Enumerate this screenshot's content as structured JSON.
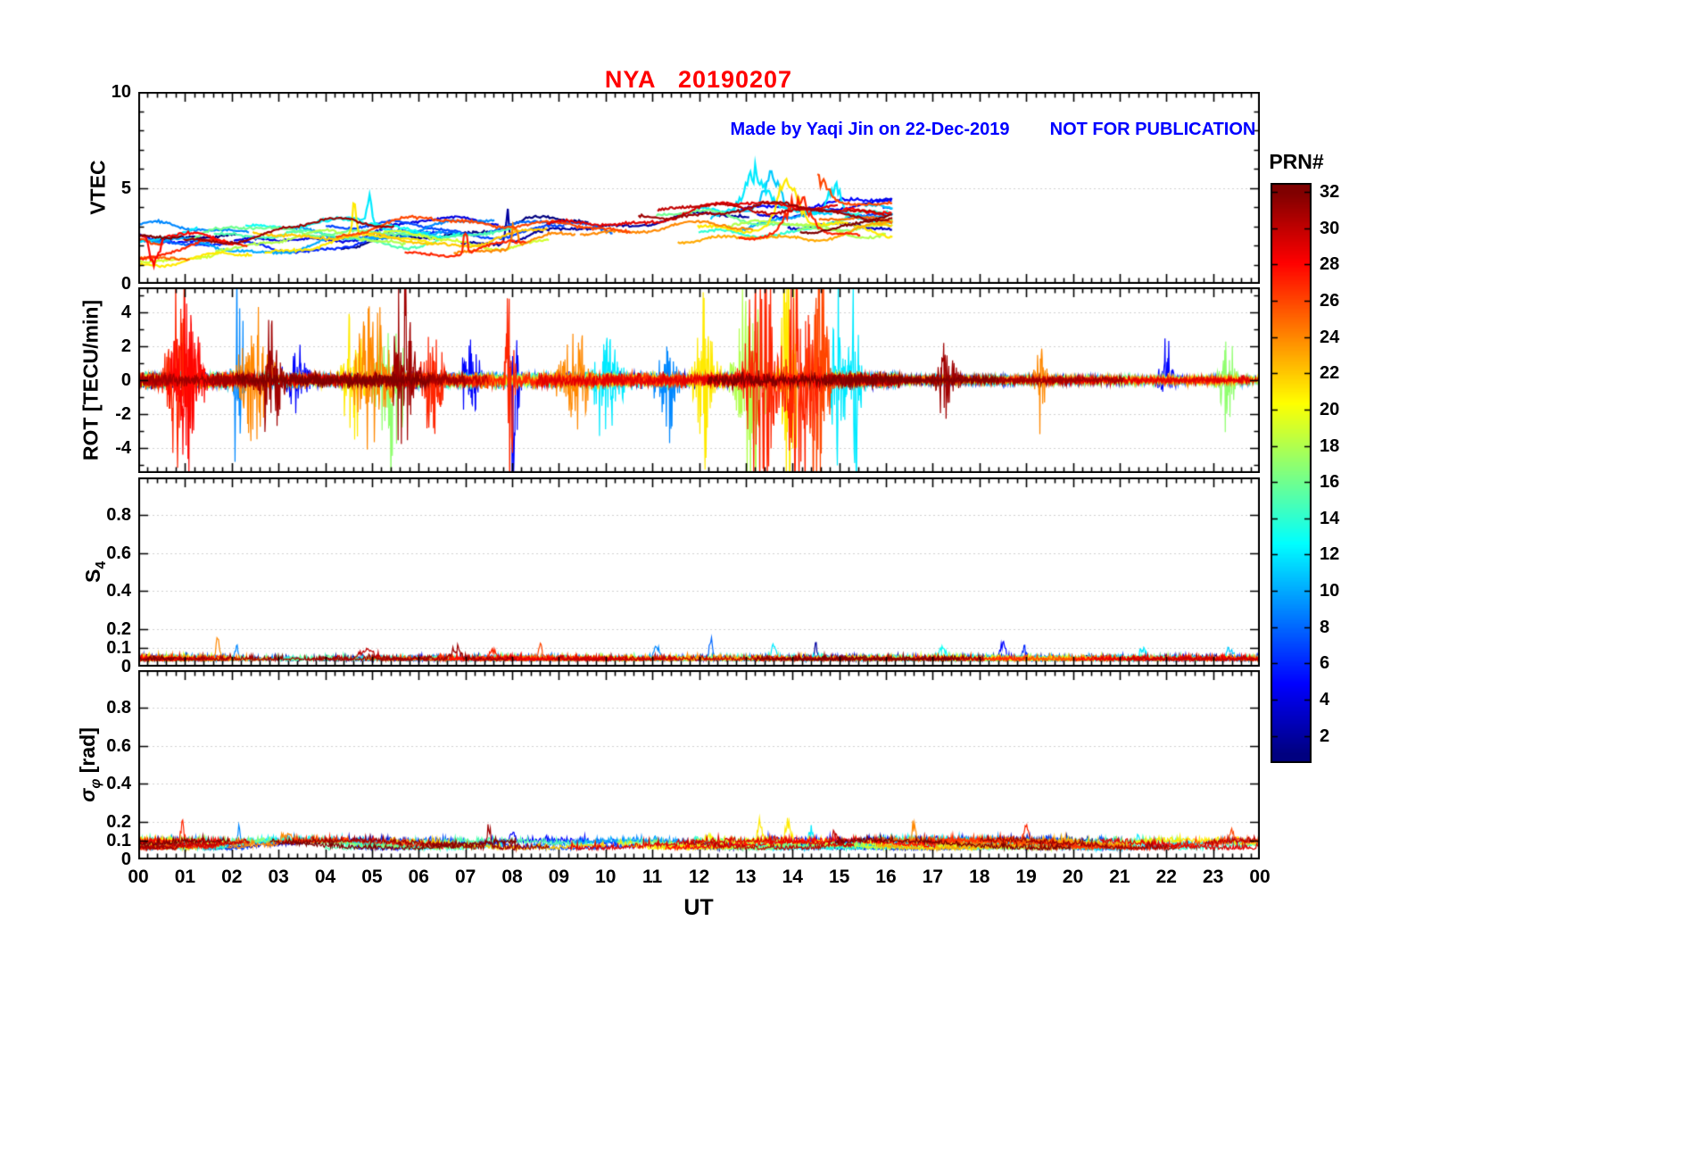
{
  "chart_data": {
    "type": "line",
    "title": "NYA   20190207",
    "subtitle_credit": "Made by Yaqi Jin on 22-Dec-2019",
    "subtitle_notice": "NOT FOR PUBLICATION",
    "xlabel": "UT",
    "x_range_hours": [
      0,
      24
    ],
    "x_ticks": [
      "00",
      "01",
      "02",
      "03",
      "04",
      "05",
      "06",
      "07",
      "08",
      "09",
      "10",
      "11",
      "12",
      "13",
      "14",
      "15",
      "16",
      "17",
      "18",
      "19",
      "20",
      "21",
      "22",
      "23",
      "00"
    ],
    "colorbar": {
      "label": "PRN#",
      "colormap": "jet",
      "value_range": [
        1,
        32
      ],
      "ticks": [
        2,
        4,
        6,
        8,
        10,
        12,
        14,
        16,
        18,
        20,
        22,
        24,
        26,
        28,
        30,
        32
      ]
    },
    "panels": [
      {
        "kind": "vtec",
        "ylabel": "VTEC",
        "ylim": [
          0,
          10
        ],
        "yticks": [
          0,
          5,
          10
        ],
        "yminor_step": 1,
        "data_time_range": [
          0,
          16.15
        ],
        "base0": 2.0,
        "base1": 3.4,
        "noise": 0.05,
        "line_width": 2.2,
        "events": [
          {
            "t": 0.35,
            "amp": -2.1,
            "prn": 28,
            "w": 0.12
          },
          {
            "t": 4.62,
            "amp": 1.9,
            "prn": 21,
            "w": 0.06
          },
          {
            "t": 4.95,
            "amp": 1.6,
            "prn": 12,
            "w": 0.07
          },
          {
            "t": 7.0,
            "amp": 1.7,
            "prn": 27,
            "w": 0.05
          },
          {
            "t": 7.9,
            "amp": 2.1,
            "prn": 2,
            "w": 0.05
          },
          {
            "t": 8.05,
            "amp": 1.5,
            "prn": 24,
            "w": 0.08
          },
          {
            "t": 13.2,
            "amp": 2.6,
            "prn": 12,
            "w": 0.35
          },
          {
            "t": 13.55,
            "amp": 2.2,
            "prn": 11,
            "w": 0.25
          },
          {
            "t": 13.9,
            "amp": 2.9,
            "prn": 21,
            "w": 0.28
          },
          {
            "t": 14.15,
            "amp": 2.3,
            "prn": 27,
            "w": 0.35
          },
          {
            "t": 14.6,
            "amp": 2.0,
            "prn": 26,
            "w": 0.25
          },
          {
            "t": 14.9,
            "amp": 1.8,
            "prn": 12,
            "w": 0.2
          }
        ]
      },
      {
        "kind": "rot",
        "ylabel": "ROT [TECU/min]",
        "ylim": [
          -5.5,
          5.5
        ],
        "yticks": [
          -4,
          -2,
          0,
          2,
          4
        ],
        "yminor_step": 1,
        "data_time_range": [
          0,
          24
        ],
        "noise_day": 0.13,
        "noise_late": 0.07,
        "line_width": 1.2,
        "events": [
          {
            "t": 0.9,
            "amp": 2.2,
            "prn": 27,
            "w": 0.25
          },
          {
            "t": 1.05,
            "amp": 1.5,
            "prn": 28,
            "w": 0.3
          },
          {
            "t": 2.15,
            "amp": 2.4,
            "prn": 9,
            "w": 0.1
          },
          {
            "t": 2.5,
            "amp": 1.2,
            "prn": 24,
            "w": 0.3
          },
          {
            "t": 2.85,
            "amp": 1.0,
            "prn": 31,
            "w": 0.2
          },
          {
            "t": 3.4,
            "amp": 0.7,
            "prn": 5,
            "w": 0.2
          },
          {
            "t": 4.6,
            "amp": 1.4,
            "prn": 21,
            "w": 0.2
          },
          {
            "t": 5.0,
            "amp": 1.8,
            "prn": 24,
            "w": 0.3
          },
          {
            "t": 5.35,
            "amp": 1.6,
            "prn": 17,
            "w": 0.3
          },
          {
            "t": 5.7,
            "amp": 2.0,
            "prn": 31,
            "w": 0.2
          },
          {
            "t": 6.3,
            "amp": 1.3,
            "prn": 27,
            "w": 0.2
          },
          {
            "t": 7.1,
            "amp": 1.2,
            "prn": 5,
            "w": 0.15
          },
          {
            "t": 7.95,
            "amp": 3.3,
            "prn": 27,
            "w": 0.08
          },
          {
            "t": 8.05,
            "amp": 2.8,
            "prn": 5,
            "w": 0.08
          },
          {
            "t": 9.3,
            "amp": 1.0,
            "prn": 24,
            "w": 0.3
          },
          {
            "t": 10.0,
            "amp": 0.9,
            "prn": 12,
            "w": 0.3
          },
          {
            "t": 11.3,
            "amp": 1.0,
            "prn": 9,
            "w": 0.2
          },
          {
            "t": 12.15,
            "amp": 1.6,
            "prn": 21,
            "w": 0.2
          },
          {
            "t": 13.1,
            "amp": 2.3,
            "prn": 18,
            "w": 0.3
          },
          {
            "t": 13.35,
            "amp": 2.5,
            "prn": 27,
            "w": 0.3
          },
          {
            "t": 13.9,
            "amp": 3.8,
            "prn": 21,
            "w": 0.15
          },
          {
            "t": 14.2,
            "amp": 3.0,
            "prn": 27,
            "w": 0.3
          },
          {
            "t": 14.55,
            "amp": 2.6,
            "prn": 26,
            "w": 0.2
          },
          {
            "t": 15.0,
            "amp": 2.4,
            "prn": 12,
            "w": 0.15
          },
          {
            "t": 15.35,
            "amp": 2.2,
            "prn": 12,
            "w": 0.1
          },
          {
            "t": 17.3,
            "amp": 0.8,
            "prn": 31,
            "w": 0.2
          },
          {
            "t": 19.3,
            "amp": 1.1,
            "prn": 24,
            "w": 0.1
          },
          {
            "t": 22.0,
            "amp": 0.7,
            "prn": 5,
            "w": 0.15
          },
          {
            "t": 23.3,
            "amp": 1.0,
            "prn": 17,
            "w": 0.15
          }
        ]
      },
      {
        "kind": "s4",
        "ylabel_main": "S",
        "ylabel_sub": "4",
        "ylim": [
          0,
          1.0
        ],
        "yticks": [
          0,
          0.1,
          0.2,
          0.4,
          0.6,
          0.8
        ],
        "data_time_range": [
          0,
          24
        ],
        "baseline": 0.032,
        "noise": 0.018,
        "line_width": 1.2,
        "events": [
          {
            "t": 1.7,
            "amp": 0.13,
            "prn": 24,
            "w": 0.05
          },
          {
            "t": 2.1,
            "amp": 0.08,
            "prn": 9,
            "w": 0.05
          },
          {
            "t": 4.9,
            "amp": 0.06,
            "prn": 30,
            "w": 0.2
          },
          {
            "t": 6.8,
            "amp": 0.07,
            "prn": 31,
            "w": 0.12
          },
          {
            "t": 7.6,
            "amp": 0.06,
            "prn": 27,
            "w": 0.1
          },
          {
            "t": 8.6,
            "amp": 0.1,
            "prn": 26,
            "w": 0.05
          },
          {
            "t": 11.1,
            "amp": 0.08,
            "prn": 9,
            "w": 0.08
          },
          {
            "t": 12.25,
            "amp": 0.16,
            "prn": 8,
            "w": 0.04
          },
          {
            "t": 13.6,
            "amp": 0.09,
            "prn": 12,
            "w": 0.07
          },
          {
            "t": 14.5,
            "amp": 0.12,
            "prn": 2,
            "w": 0.03
          },
          {
            "t": 17.2,
            "amp": 0.07,
            "prn": 13,
            "w": 0.1
          },
          {
            "t": 18.5,
            "amp": 0.11,
            "prn": 5,
            "w": 0.08
          },
          {
            "t": 18.95,
            "amp": 0.08,
            "prn": 6,
            "w": 0.06
          },
          {
            "t": 21.5,
            "amp": 0.08,
            "prn": 12,
            "w": 0.08
          },
          {
            "t": 23.35,
            "amp": 0.08,
            "prn": 11,
            "w": 0.08
          }
        ]
      },
      {
        "kind": "sigma",
        "ylabel_main": "σ",
        "ylabel_sub": "φ",
        "ylabel_suffix": " [rad]",
        "ylim": [
          0,
          1.0
        ],
        "yticks": [
          0,
          0.1,
          0.2,
          0.4,
          0.6,
          0.8
        ],
        "data_time_range": [
          0,
          24
        ],
        "baseline": 0.07,
        "noise": 0.022,
        "line_width": 1.2,
        "events": [
          {
            "t": 0.95,
            "amp": 0.15,
            "prn": 27,
            "w": 0.06
          },
          {
            "t": 2.15,
            "amp": 0.12,
            "prn": 9,
            "w": 0.04
          },
          {
            "t": 3.2,
            "amp": 0.05,
            "prn": 24,
            "w": 0.15
          },
          {
            "t": 7.5,
            "amp": 0.16,
            "prn": 31,
            "w": 0.05
          },
          {
            "t": 8.0,
            "amp": 0.05,
            "prn": 5,
            "w": 0.08
          },
          {
            "t": 12.2,
            "amp": 0.06,
            "prn": 20,
            "w": 0.1
          },
          {
            "t": 13.3,
            "amp": 0.15,
            "prn": 21,
            "w": 0.08
          },
          {
            "t": 13.9,
            "amp": 0.13,
            "prn": 21,
            "w": 0.08
          },
          {
            "t": 14.4,
            "amp": 0.12,
            "prn": 12,
            "w": 0.08
          },
          {
            "t": 14.9,
            "amp": 0.1,
            "prn": 30,
            "w": 0.08
          },
          {
            "t": 16.6,
            "amp": 0.16,
            "prn": 24,
            "w": 0.05
          },
          {
            "t": 19.0,
            "amp": 0.1,
            "prn": 27,
            "w": 0.08
          },
          {
            "t": 21.4,
            "amp": 0.07,
            "prn": 12,
            "w": 0.08
          },
          {
            "t": 23.4,
            "amp": 0.06,
            "prn": 26,
            "w": 0.08
          }
        ]
      }
    ]
  }
}
